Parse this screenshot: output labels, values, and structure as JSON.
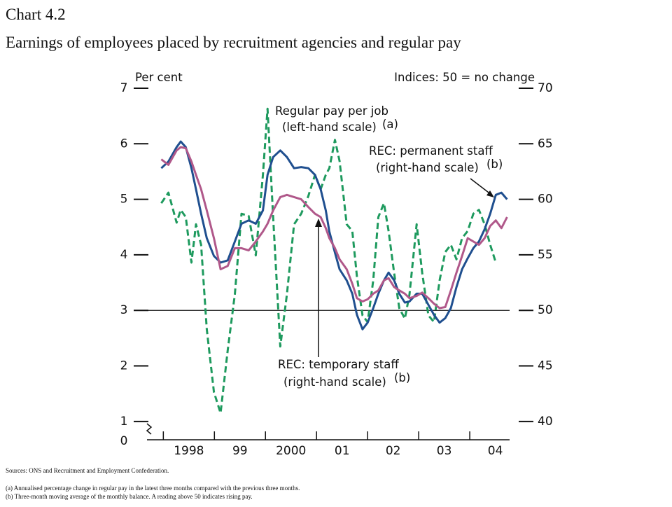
{
  "chart_data": {
    "type": "line",
    "title": "Chart 4.2",
    "subtitle": "Earnings of employees placed by recruitment agencies and regular pay",
    "ylabel": "Per cent",
    "y2label": "Indices:  50 = no change",
    "y_break_label": "0",
    "x": [
      1997.96,
      1998.1,
      1998.26,
      1998.34,
      1998.44,
      1998.55,
      1998.64,
      1998.74,
      1998.85,
      1998.99,
      1999.12,
      1999.26,
      1999.4,
      1999.53,
      1999.67,
      1999.81,
      1999.95,
      2000.04,
      2000.15,
      2000.29,
      2000.42,
      2000.56,
      2000.7,
      2000.84,
      2000.97,
      2001.08,
      2001.18,
      2001.25,
      2001.36,
      2001.45,
      2001.59,
      2001.7,
      2001.79,
      2001.9,
      2002.0,
      2002.11,
      2002.21,
      2002.32,
      2002.41,
      2002.52,
      2002.62,
      2002.73,
      2002.82,
      2002.96,
      2003.07,
      2003.19,
      2003.3,
      2003.41,
      2003.52,
      2003.63,
      2003.74,
      2003.85,
      2003.96,
      2004.07,
      2004.18,
      2004.29,
      2004.4,
      2004.51,
      2004.62,
      2004.73
    ],
    "xlim": [
      1997.68,
      2004.78
    ],
    "xticks": [
      {
        "value": 1998.5,
        "label": "1998"
      },
      {
        "value": 1999.5,
        "label": "99"
      },
      {
        "value": 2000.5,
        "label": "2000"
      },
      {
        "value": 2001.5,
        "label": "01"
      },
      {
        "value": 2002.5,
        "label": "02"
      },
      {
        "value": 2003.5,
        "label": "03"
      },
      {
        "value": 2004.5,
        "label": "04"
      }
    ],
    "xtick_marks": [
      1998,
      1999,
      2000,
      2001,
      2002,
      2003,
      2004
    ],
    "ylim": [
      0.67,
      7
    ],
    "yticks": [
      1,
      2,
      3,
      4,
      5,
      6,
      7
    ],
    "y2lim": [
      38.35,
      70
    ],
    "y2ticks": [
      40,
      45,
      50,
      55,
      60,
      65,
      70
    ],
    "reference_line": 3,
    "series": [
      {
        "name": "Regular pay per job",
        "color": "#1e9a5e",
        "dashed": true,
        "axis": "y",
        "values": [
          4.93,
          5.12,
          4.58,
          4.81,
          4.68,
          3.86,
          4.55,
          4.18,
          2.66,
          1.53,
          1.15,
          2.28,
          3.29,
          4.74,
          4.7,
          3.99,
          5.44,
          6.63,
          4.68,
          2.35,
          3.29,
          4.55,
          4.74,
          5.06,
          5.44,
          5.18,
          5.44,
          5.56,
          6.07,
          5.69,
          4.55,
          4.43,
          3.61,
          2.91,
          2.79,
          3.54,
          4.68,
          4.93,
          4.43,
          3.67,
          3.04,
          2.85,
          3.29,
          4.55,
          3.67,
          2.91,
          2.79,
          3.54,
          4.05,
          4.18,
          3.92,
          4.3,
          4.43,
          4.74,
          4.81,
          4.55,
          4.18,
          3.86,
          null,
          null
        ]
      },
      {
        "name": "REC: permanent staff",
        "color": "#1f4f8f",
        "dashed": false,
        "axis": "y2",
        "values": [
          62.8,
          63.4,
          64.7,
          65.2,
          64.7,
          62.8,
          60.9,
          58.7,
          56.5,
          54.9,
          54.3,
          54.5,
          56.2,
          57.8,
          58.1,
          57.8,
          59.0,
          62.2,
          63.8,
          64.4,
          63.8,
          62.8,
          62.9,
          62.8,
          62.2,
          60.9,
          59.0,
          57.1,
          55.2,
          53.7,
          52.7,
          51.5,
          49.6,
          48.3,
          48.9,
          50.2,
          51.5,
          52.7,
          53.4,
          52.7,
          51.5,
          50.7,
          50.8,
          51.5,
          51.5,
          50.5,
          49.6,
          48.9,
          49.3,
          50.2,
          52.1,
          53.7,
          54.7,
          55.6,
          56.2,
          57.3,
          58.7,
          60.4,
          60.6,
          60.0
        ]
      },
      {
        "name": "REC: temporary staff",
        "color": "#b0588a",
        "dashed": false,
        "axis": "y2",
        "values": [
          63.6,
          63.1,
          64.4,
          64.7,
          64.6,
          63.4,
          62.2,
          60.9,
          59.0,
          56.5,
          53.7,
          54.0,
          55.6,
          55.6,
          55.4,
          56.2,
          57.1,
          57.8,
          59.0,
          60.2,
          60.4,
          60.2,
          60.0,
          59.3,
          58.7,
          58.4,
          57.4,
          56.5,
          55.6,
          54.6,
          53.7,
          52.4,
          51.1,
          50.8,
          51.0,
          51.5,
          51.8,
          52.7,
          52.9,
          52.1,
          51.8,
          51.5,
          51.1,
          51.3,
          51.6,
          51.1,
          50.6,
          50.2,
          50.3,
          51.8,
          53.4,
          54.9,
          56.5,
          56.2,
          55.9,
          56.5,
          57.6,
          58.1,
          57.4,
          58.4
        ]
      }
    ],
    "annotations": [
      {
        "lines": [
          "Regular pay per job",
          "(left-hand scale)"
        ],
        "note": "(a)"
      },
      {
        "lines": [
          "REC:  permanent staff",
          "(right-hand scale)"
        ],
        "note": "(b)"
      },
      {
        "lines": [
          "REC:  temporary staff",
          "(right-hand scale)"
        ],
        "note": "(b)"
      }
    ],
    "footnotes": [
      "Sources:  ONS and Recruitment and Employment Confederation.",
      "(a)  Annualised percentage change in regular pay in the latest three months compared with the previous three months.",
      "(b)  Three-month moving average of the monthly balance.  A reading above 50 indicates rising pay."
    ]
  }
}
